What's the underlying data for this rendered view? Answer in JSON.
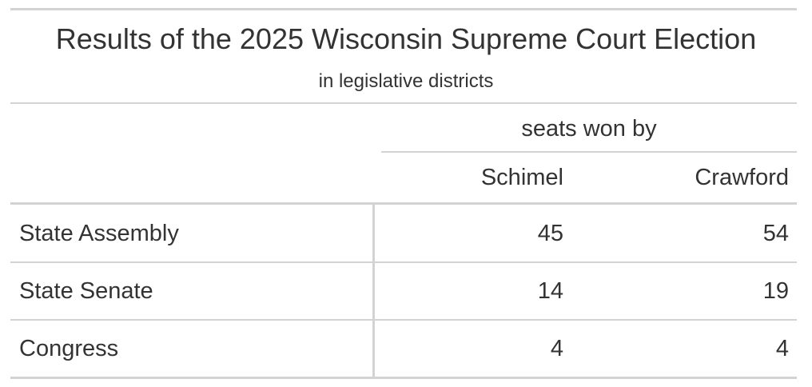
{
  "header": {
    "title": "Results of the 2025 Wisconsin Supreme Court Election",
    "subtitle": "in legislative districts"
  },
  "table": {
    "spanner": "seats won by",
    "columns": [
      "Schimel",
      "Crawford"
    ],
    "rows": [
      [
        "State Assembly",
        45,
        54
      ],
      [
        "State Senate",
        14,
        19
      ],
      [
        "Congress",
        4,
        4
      ]
    ]
  }
}
